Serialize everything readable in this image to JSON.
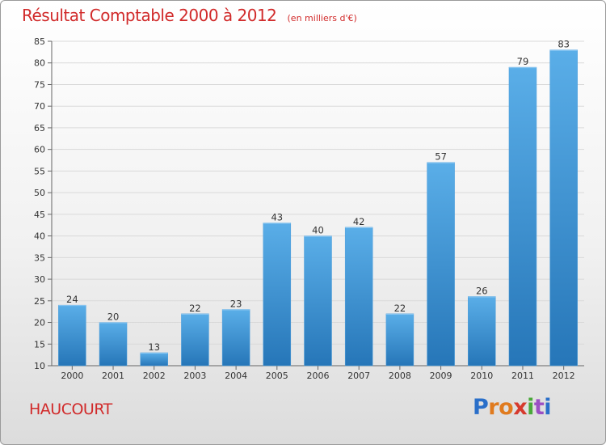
{
  "title": "Résultat Comptable 2000 à 2012",
  "subtitle": "(en milliers d'€)",
  "commune": "HAUCOURT",
  "logo": {
    "letters": [
      "P",
      "r",
      "o",
      "x",
      "i",
      "t",
      "i"
    ],
    "colors": [
      "#2a6fc9",
      "#e07b1f",
      "#e07b1f",
      "#d63a2e",
      "#4aa83a",
      "#9b4fc4",
      "#2a6fc9"
    ]
  },
  "colors": {
    "title": "#d12a2a",
    "bar_top": "#5aaee8",
    "bar_bottom": "#2676b8",
    "grid": "#d9d9d9"
  },
  "chart_data": {
    "type": "bar",
    "title": "Résultat Comptable 2000 à 2012",
    "subtitle": "(en milliers d'€)",
    "xlabel": "",
    "ylabel": "",
    "categories": [
      "2000",
      "2001",
      "2002",
      "2003",
      "2004",
      "2005",
      "2006",
      "2007",
      "2008",
      "2009",
      "2010",
      "2011",
      "2012"
    ],
    "values": [
      24,
      20,
      13,
      22,
      23,
      43,
      40,
      42,
      22,
      57,
      26,
      79,
      83
    ],
    "ylim": [
      10,
      85
    ],
    "yticks": [
      10,
      15,
      20,
      25,
      30,
      35,
      40,
      45,
      50,
      55,
      60,
      65,
      70,
      75,
      80,
      85
    ],
    "grid": true,
    "data_labels": true
  }
}
